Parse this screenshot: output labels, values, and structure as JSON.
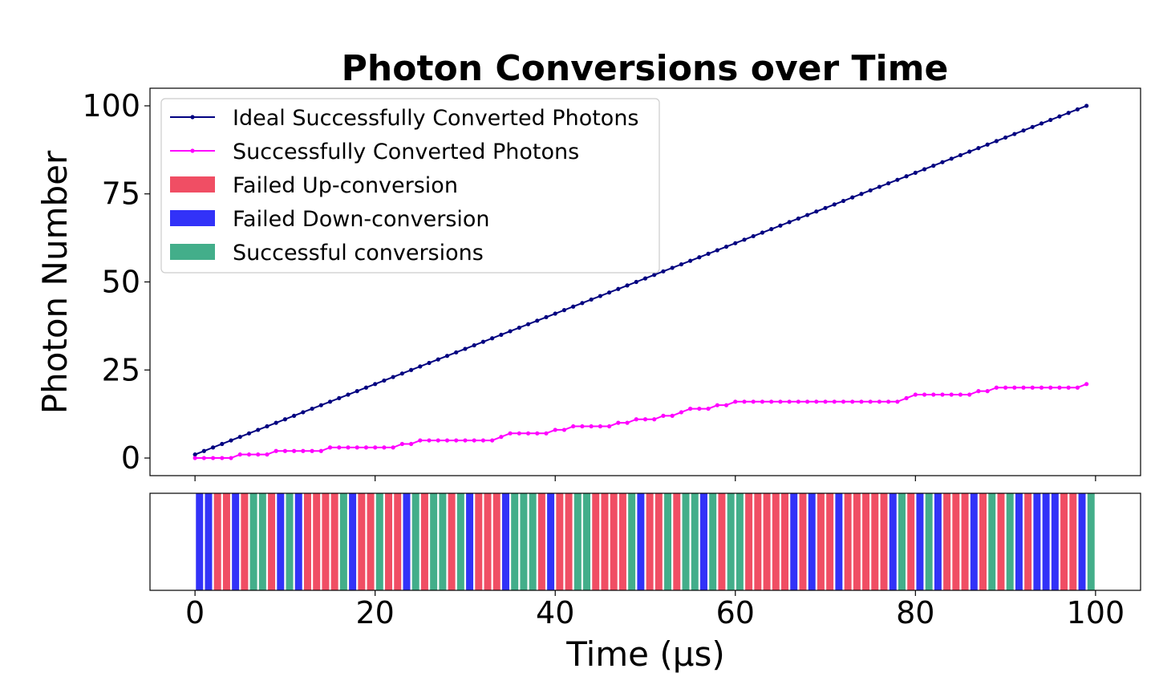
{
  "chart_data": [
    {
      "type": "line",
      "title": "Photon Conversions over Time",
      "xlabel": "",
      "ylabel": "Photon Number",
      "xlim": [
        -5,
        105
      ],
      "ylim": [
        -5,
        105
      ],
      "yticks": [
        0,
        25,
        50,
        75,
        100
      ],
      "ytick_labels": [
        "0",
        "25",
        "50",
        "75",
        "100"
      ],
      "grid": false,
      "legend_position": "top-left",
      "legend": {
        "lines": [
          {
            "label": "Ideal Successfully Converted Photons",
            "color": "#000080"
          },
          {
            "label": "Successfully Converted Photons",
            "color": "#ff00ff"
          }
        ],
        "patches": [
          {
            "label": "Failed Up-conversion",
            "color": "#f04e64"
          },
          {
            "label": "Failed Down-conversion",
            "color": "#3232f8"
          },
          {
            "label": "Successful conversions",
            "color": "#43ae8a"
          }
        ]
      },
      "series": [
        {
          "name": "Ideal Successfully Converted Photons",
          "color": "#000080",
          "x": [
            0,
            1,
            2,
            3,
            4,
            5,
            6,
            7,
            8,
            9,
            10,
            11,
            12,
            13,
            14,
            15,
            16,
            17,
            18,
            19,
            20,
            21,
            22,
            23,
            24,
            25,
            26,
            27,
            28,
            29,
            30,
            31,
            32,
            33,
            34,
            35,
            36,
            37,
            38,
            39,
            40,
            41,
            42,
            43,
            44,
            45,
            46,
            47,
            48,
            49,
            50,
            51,
            52,
            53,
            54,
            55,
            56,
            57,
            58,
            59,
            60,
            61,
            62,
            63,
            64,
            65,
            66,
            67,
            68,
            69,
            70,
            71,
            72,
            73,
            74,
            75,
            76,
            77,
            78,
            79,
            80,
            81,
            82,
            83,
            84,
            85,
            86,
            87,
            88,
            89,
            90,
            91,
            92,
            93,
            94,
            95,
            96,
            97,
            98,
            99
          ],
          "values": [
            1,
            2,
            3,
            4,
            5,
            6,
            7,
            8,
            9,
            10,
            11,
            12,
            13,
            14,
            15,
            16,
            17,
            18,
            19,
            20,
            21,
            22,
            23,
            24,
            25,
            26,
            27,
            28,
            29,
            30,
            31,
            32,
            33,
            34,
            35,
            36,
            37,
            38,
            39,
            40,
            41,
            42,
            43,
            44,
            45,
            46,
            47,
            48,
            49,
            50,
            51,
            52,
            53,
            54,
            55,
            56,
            57,
            58,
            59,
            60,
            61,
            62,
            63,
            64,
            65,
            66,
            67,
            68,
            69,
            70,
            71,
            72,
            73,
            74,
            75,
            76,
            77,
            78,
            79,
            80,
            81,
            82,
            83,
            84,
            85,
            86,
            87,
            88,
            89,
            90,
            91,
            92,
            93,
            94,
            95,
            96,
            97,
            98,
            99,
            100
          ]
        },
        {
          "name": "Successfully Converted Photons",
          "color": "#ff00ff",
          "x": [
            0,
            1,
            2,
            3,
            4,
            5,
            6,
            7,
            8,
            9,
            10,
            11,
            12,
            13,
            14,
            15,
            16,
            17,
            18,
            19,
            20,
            21,
            22,
            23,
            24,
            25,
            26,
            27,
            28,
            29,
            30,
            31,
            32,
            33,
            34,
            35,
            36,
            37,
            38,
            39,
            40,
            41,
            42,
            43,
            44,
            45,
            46,
            47,
            48,
            49,
            50,
            51,
            52,
            53,
            54,
            55,
            56,
            57,
            58,
            59,
            60,
            61,
            62,
            63,
            64,
            65,
            66,
            67,
            68,
            69,
            70,
            71,
            72,
            73,
            74,
            75,
            76,
            77,
            78,
            79,
            80,
            81,
            82,
            83,
            84,
            85,
            86,
            87,
            88,
            89,
            90,
            91,
            92,
            93,
            94,
            95,
            96,
            97,
            98,
            99
          ],
          "values": [
            0,
            0,
            0,
            0,
            0,
            1,
            1,
            1,
            1,
            2,
            2,
            2,
            2,
            2,
            2,
            3,
            3,
            3,
            3,
            3,
            3,
            3,
            3,
            4,
            4,
            5,
            5,
            5,
            5,
            5,
            5,
            5,
            5,
            5,
            6,
            7,
            7,
            7,
            7,
            7,
            8,
            8,
            9,
            9,
            9,
            9,
            9,
            10,
            10,
            11,
            11,
            11,
            12,
            12,
            13,
            14,
            14,
            14,
            15,
            15,
            16,
            16,
            16,
            16,
            16,
            16,
            16,
            16,
            16,
            16,
            16,
            16,
            16,
            16,
            16,
            16,
            16,
            16,
            16,
            17,
            18,
            18,
            18,
            18,
            18,
            18,
            18,
            19,
            19,
            20,
            20,
            20,
            20,
            20,
            20,
            20,
            20,
            20,
            20,
            21
          ]
        }
      ]
    },
    {
      "type": "bar",
      "title": "",
      "xlabel": "Time (μs)",
      "ylabel": "",
      "xlim": [
        -5,
        105
      ],
      "xticks": [
        0,
        20,
        40,
        60,
        80,
        100
      ],
      "xtick_labels": [
        "0",
        "20",
        "40",
        "60",
        "80",
        "100"
      ],
      "status_legend": {
        "U": "Failed Up-conversion",
        "D": "Failed Down-conversion",
        "S": "Successful conversions"
      },
      "status_colors": {
        "U": "#f04e64",
        "D": "#3232f8",
        "S": "#43ae8a"
      },
      "categories": [
        0,
        1,
        2,
        3,
        4,
        5,
        6,
        7,
        8,
        9,
        10,
        11,
        12,
        13,
        14,
        15,
        16,
        17,
        18,
        19,
        20,
        21,
        22,
        23,
        24,
        25,
        26,
        27,
        28,
        29,
        30,
        31,
        32,
        33,
        34,
        35,
        36,
        37,
        38,
        39,
        40,
        41,
        42,
        43,
        44,
        45,
        46,
        47,
        48,
        49,
        50,
        51,
        52,
        53,
        54,
        55,
        56,
        57,
        58,
        59,
        60,
        61,
        62,
        63,
        64,
        65,
        66,
        67,
        68,
        69,
        70,
        71,
        72,
        73,
        74,
        75,
        76,
        77,
        78,
        79,
        80,
        81,
        82,
        83,
        84,
        85,
        86,
        87,
        88,
        89,
        90,
        91,
        92,
        93,
        94,
        95,
        96,
        97,
        98,
        99
      ],
      "statuses": [
        "D",
        "D",
        "U",
        "U",
        "D",
        "U",
        "S",
        "S",
        "U",
        "D",
        "S",
        "D",
        "U",
        "U",
        "U",
        "U",
        "S",
        "D",
        "U",
        "U",
        "S",
        "U",
        "U",
        "D",
        "S",
        "U",
        "S",
        "S",
        "U",
        "S",
        "D",
        "U",
        "U",
        "U",
        "D",
        "S",
        "S",
        "S",
        "U",
        "D",
        "U",
        "U",
        "S",
        "S",
        "U",
        "U",
        "U",
        "U",
        "S",
        "D",
        "U",
        "U",
        "S",
        "U",
        "S",
        "S",
        "D",
        "S",
        "U",
        "S",
        "S",
        "U",
        "U",
        "U",
        "U",
        "U",
        "D",
        "U",
        "D",
        "U",
        "U",
        "D",
        "U",
        "U",
        "U",
        "U",
        "U",
        "D",
        "S",
        "U",
        "D",
        "S",
        "D",
        "U",
        "U",
        "U",
        "D",
        "U",
        "S",
        "U",
        "S",
        "D",
        "U",
        "D",
        "D",
        "D",
        "U",
        "U",
        "D",
        "S"
      ]
    }
  ]
}
